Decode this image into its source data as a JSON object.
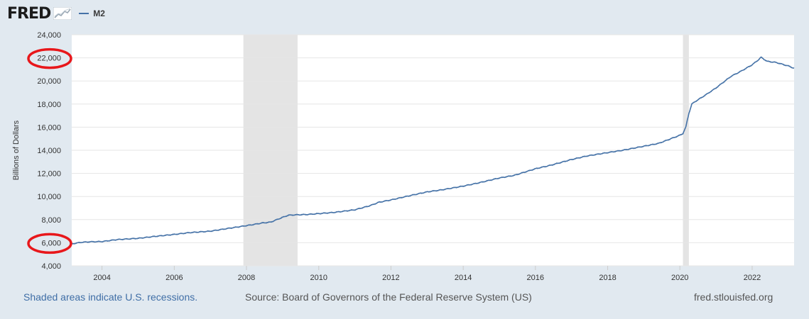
{
  "header": {
    "logo": "FRED",
    "legend_label": "M2"
  },
  "footer": {
    "recessions_note": "Shaded areas indicate U.S. recessions.",
    "source": "Source: Board of Governors of the Federal Reserve System (US)",
    "url": "fred.stlouisfed.org"
  },
  "colors": {
    "series": "#4572a7",
    "recession": "#e4e4e4",
    "annotation": "#e8171b",
    "grid": "#e6e6e6"
  },
  "chart_data": {
    "type": "line",
    "title": "",
    "xlabel": "",
    "ylabel": "Billions of Dollars",
    "x_range": [
      "2003-03-01",
      "2023-03-01"
    ],
    "ylim": [
      4000,
      24000
    ],
    "y_ticks": [
      4000,
      6000,
      8000,
      10000,
      12000,
      14000,
      16000,
      18000,
      20000,
      22000,
      24000
    ],
    "y_tick_labels": [
      "4,000",
      "6,000",
      "8,000",
      "10,000",
      "12,000",
      "14,000",
      "16,000",
      "18,000",
      "20,000",
      "22,000",
      "24,000"
    ],
    "x_ticks": [
      "2004-01-01",
      "2006-01-01",
      "2008-01-01",
      "2010-01-01",
      "2012-01-01",
      "2014-01-01",
      "2016-01-01",
      "2018-01-01",
      "2020-01-01",
      "2022-01-01"
    ],
    "x_tick_labels": [
      "2004",
      "2006",
      "2008",
      "2010",
      "2012",
      "2014",
      "2016",
      "2018",
      "2020",
      "2022"
    ],
    "recessions": [
      {
        "start": "2007-12-01",
        "end": "2009-06-01"
      },
      {
        "start": "2020-02-01",
        "end": "2020-04-01"
      }
    ],
    "circled_ticks": [
      "22,000",
      "6,000"
    ],
    "grid": true,
    "series": [
      {
        "name": "M2",
        "x": [
          "2003-03-01",
          "2003-06-01",
          "2003-09-01",
          "2004-01-01",
          "2004-06-01",
          "2005-01-01",
          "2005-06-01",
          "2006-01-01",
          "2006-06-01",
          "2007-01-01",
          "2007-06-01",
          "2008-01-01",
          "2008-03-01",
          "2008-06-01",
          "2008-09-01",
          "2009-01-01",
          "2009-03-01",
          "2009-06-01",
          "2009-09-01",
          "2010-01-01",
          "2010-06-01",
          "2011-01-01",
          "2011-06-01",
          "2011-09-01",
          "2012-01-01",
          "2012-06-01",
          "2013-01-01",
          "2013-06-01",
          "2014-01-01",
          "2014-06-01",
          "2015-01-01",
          "2015-06-01",
          "2016-01-01",
          "2016-06-01",
          "2017-01-01",
          "2017-06-01",
          "2018-01-01",
          "2018-06-01",
          "2019-01-01",
          "2019-06-01",
          "2020-01-01",
          "2020-02-01",
          "2020-03-01",
          "2020-04-01",
          "2020-05-01",
          "2020-06-01",
          "2020-09-01",
          "2021-01-01",
          "2021-06-01",
          "2021-09-01",
          "2022-01-01",
          "2022-03-01",
          "2022-04-01",
          "2022-06-01",
          "2022-09-01",
          "2023-01-01",
          "2023-03-01"
        ],
        "values": [
          5900,
          6030,
          6080,
          6100,
          6270,
          6380,
          6530,
          6720,
          6870,
          7000,
          7200,
          7480,
          7560,
          7700,
          7780,
          8200,
          8380,
          8420,
          8440,
          8520,
          8620,
          8850,
          9200,
          9500,
          9700,
          10000,
          10400,
          10580,
          10900,
          11170,
          11600,
          11830,
          12400,
          12700,
          13200,
          13500,
          13800,
          14000,
          14350,
          14600,
          15300,
          15450,
          16000,
          17200,
          18000,
          18200,
          18700,
          19400,
          20400,
          20800,
          21400,
          21800,
          22050,
          21700,
          21600,
          21300,
          21100
        ]
      }
    ]
  }
}
